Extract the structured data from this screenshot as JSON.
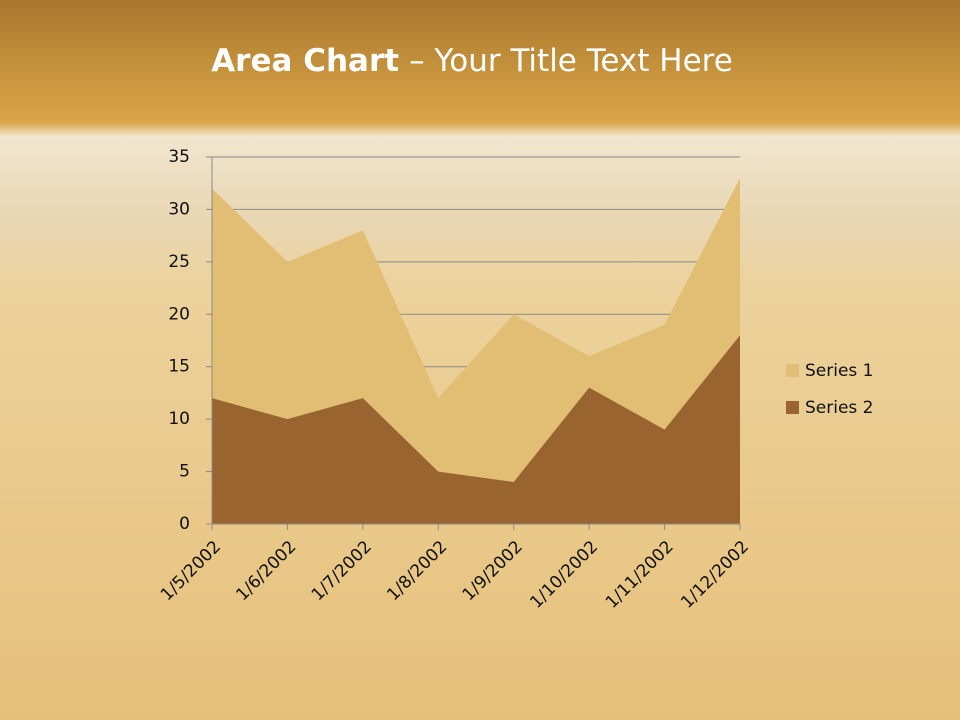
{
  "chart_data": {
    "type": "area",
    "title_bold": "Area Chart",
    "title": "– Your Title Text Here",
    "categories": [
      "1/5/2002",
      "1/6/2002",
      "1/7/2002",
      "1/8/2002",
      "1/9/2002",
      "1/10/2002",
      "1/11/2002",
      "1/12/2002"
    ],
    "series": [
      {
        "name": "Series 1",
        "color": "#e2bd74",
        "values": [
          32,
          25,
          28,
          12,
          20,
          16,
          19,
          33
        ]
      },
      {
        "name": "Series 2",
        "color": "#9a6430",
        "values": [
          12,
          10,
          12,
          5,
          4,
          13,
          9,
          18
        ]
      }
    ],
    "ylim": [
      0,
      35
    ],
    "yticks": [
      0,
      5,
      10,
      15,
      20,
      25,
      30,
      35
    ],
    "grid": true,
    "legend": "right"
  }
}
